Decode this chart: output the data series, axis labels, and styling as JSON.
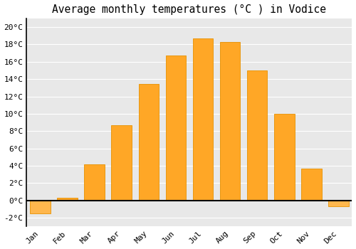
{
  "title": "Average monthly temperatures (°C ) in Vodice",
  "months": [
    "Jan",
    "Feb",
    "Mar",
    "Apr",
    "May",
    "Jun",
    "Jul",
    "Aug",
    "Sep",
    "Oct",
    "Nov",
    "Dec"
  ],
  "values": [
    -1.5,
    0.3,
    4.2,
    8.7,
    13.4,
    16.7,
    18.7,
    18.3,
    15.0,
    10.0,
    3.7,
    -0.7
  ],
  "bar_color_positive": "#FFA726",
  "bar_color_negative": "#FFB74D",
  "bar_edge_color": "#E69100",
  "ylim": [
    -3,
    21
  ],
  "yticks": [
    -2,
    0,
    2,
    4,
    6,
    8,
    10,
    12,
    14,
    16,
    18,
    20
  ],
  "ytick_labels": [
    "-2°C",
    "0°C",
    "2°C",
    "4°C",
    "6°C",
    "8°C",
    "10°C",
    "12°C",
    "14°C",
    "16°C",
    "18°C",
    "20°C"
  ],
  "outer_background": "#ffffff",
  "plot_background": "#e8e8e8",
  "grid_color": "#ffffff",
  "title_fontsize": 10.5,
  "tick_fontsize": 8,
  "font_family": "monospace",
  "bar_width": 0.75
}
